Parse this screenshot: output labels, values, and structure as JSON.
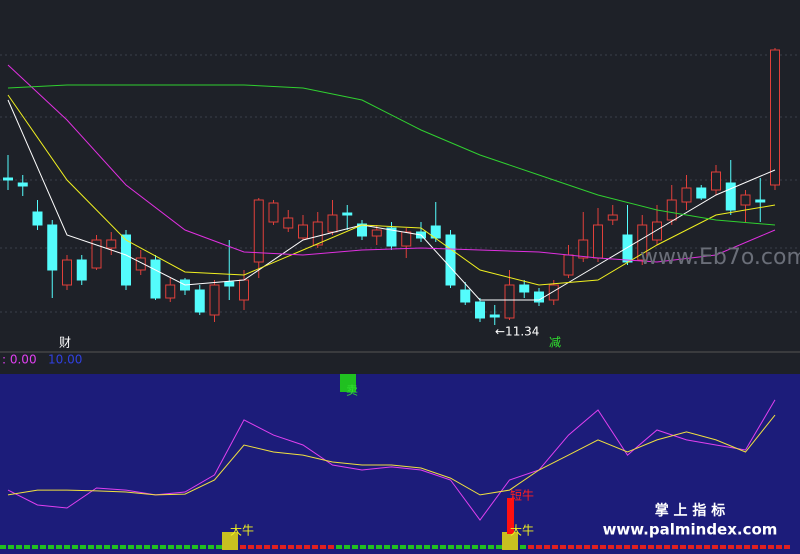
{
  "chart_data": [
    {
      "type": "candlestick",
      "ylim": [
        11.07,
        14.59
      ],
      "up_color": "#e0403a",
      "down_color": "#54fcfc",
      "open": [
        12.81,
        12.76,
        12.47,
        12.34,
        11.74,
        11.99,
        11.91,
        12.11,
        12.24,
        11.89,
        11.99,
        11.61,
        11.79,
        11.69,
        11.44,
        11.77,
        11.59,
        11.97,
        12.37,
        12.31,
        12.21,
        12.14,
        12.27,
        12.46,
        12.35,
        12.23,
        12.31,
        12.13,
        12.27,
        12.33,
        12.24,
        11.69,
        11.57,
        11.44,
        11.41,
        11.74,
        11.67,
        11.59,
        11.84,
        12.01,
        12.01,
        12.39,
        12.24,
        11.99,
        12.19,
        12.39,
        12.57,
        12.71,
        12.69,
        12.76,
        12.54,
        12.59,
        12.74
      ],
      "high": [
        13.04,
        12.84,
        12.59,
        12.39,
        12.04,
        12.04,
        12.24,
        12.27,
        12.29,
        12.09,
        12.04,
        11.81,
        11.81,
        11.74,
        11.79,
        12.19,
        11.89,
        12.61,
        12.59,
        12.49,
        12.44,
        12.47,
        12.59,
        12.54,
        12.39,
        12.34,
        12.37,
        12.31,
        12.37,
        12.57,
        12.29,
        11.77,
        11.61,
        11.54,
        11.89,
        11.79,
        11.71,
        11.79,
        12.14,
        12.47,
        12.51,
        12.54,
        12.54,
        12.44,
        12.54,
        12.74,
        12.84,
        12.74,
        12.94,
        12.99,
        12.69,
        12.81,
        14.11
      ],
      "low": [
        12.69,
        12.63,
        12.29,
        11.61,
        11.69,
        11.74,
        11.89,
        12.04,
        11.69,
        11.84,
        11.59,
        11.57,
        11.64,
        11.44,
        11.37,
        11.59,
        11.49,
        11.81,
        12.34,
        12.27,
        12.19,
        12.11,
        12.24,
        12.29,
        12.19,
        12.14,
        12.09,
        12.01,
        12.17,
        12.17,
        11.71,
        11.54,
        11.37,
        11.34,
        11.39,
        11.61,
        11.53,
        11.54,
        11.81,
        11.97,
        11.97,
        12.34,
        11.94,
        11.94,
        12.14,
        12.34,
        12.49,
        12.59,
        12.64,
        12.44,
        12.37,
        12.37,
        12.69
      ],
      "close": [
        12.79,
        12.73,
        12.34,
        11.89,
        11.99,
        11.79,
        12.19,
        12.19,
        11.74,
        12.01,
        11.61,
        11.74,
        11.69,
        11.47,
        11.74,
        11.73,
        11.79,
        12.59,
        12.56,
        12.41,
        12.34,
        12.37,
        12.44,
        12.44,
        12.23,
        12.29,
        12.13,
        12.27,
        12.21,
        12.21,
        11.74,
        11.57,
        11.41,
        11.42,
        11.74,
        11.67,
        11.57,
        11.74,
        12.04,
        12.19,
        12.34,
        12.44,
        11.97,
        12.34,
        12.37,
        12.59,
        12.71,
        12.61,
        12.87,
        12.49,
        12.64,
        12.57,
        14.09
      ],
      "series": [
        {
          "color": "#ffffff",
          "x": [
            0,
            4,
            8,
            12,
            16,
            20,
            24,
            28,
            32,
            36,
            40,
            44,
            48,
            52
          ],
          "values": [
            13.59,
            12.24,
            12.04,
            11.74,
            11.79,
            12.19,
            12.34,
            12.24,
            11.59,
            11.59,
            11.94,
            12.29,
            12.64,
            12.89
          ]
        },
        {
          "color": "#f0f020",
          "x": [
            0,
            4,
            8,
            12,
            16,
            20,
            24,
            28,
            32,
            36,
            40,
            44,
            48,
            52
          ],
          "values": [
            13.64,
            12.79,
            12.19,
            11.87,
            11.84,
            12.09,
            12.34,
            12.31,
            11.89,
            11.74,
            11.79,
            12.14,
            12.44,
            12.54
          ]
        },
        {
          "color": "#e030e0",
          "x": [
            0,
            4,
            8,
            12,
            16,
            20,
            24,
            28,
            32,
            36,
            40,
            44,
            48,
            52
          ],
          "values": [
            13.94,
            13.39,
            12.74,
            12.29,
            12.07,
            12.04,
            12.09,
            12.11,
            12.09,
            12.07,
            12.01,
            11.97,
            12.04,
            12.29
          ]
        },
        {
          "color": "#30d030",
          "x": [
            0,
            4,
            8,
            12,
            16,
            20,
            24,
            28,
            32,
            36,
            40,
            44,
            48,
            52
          ],
          "values": [
            13.71,
            13.74,
            13.74,
            13.74,
            13.74,
            13.71,
            13.59,
            13.29,
            13.04,
            12.84,
            12.64,
            12.49,
            12.39,
            12.34
          ]
        }
      ],
      "annotations": [
        "财",
        "减",
        "←11.34",
        "www.Eb7o.com"
      ]
    },
    {
      "type": "line",
      "ylim": [
        0,
        100
      ],
      "x": [
        0,
        2,
        4,
        6,
        8,
        10,
        12,
        14,
        16,
        18,
        20,
        22,
        24,
        26,
        28,
        30,
        32,
        34,
        36,
        38,
        40,
        42,
        44,
        46,
        48,
        50,
        52
      ],
      "series": [
        {
          "color": "#e040f0",
          "values": [
            33.3,
            24.7,
            23.0,
            34.5,
            33.3,
            30.5,
            32.2,
            42.0,
            73.6,
            64.9,
            59.2,
            47.7,
            44.8,
            46.6,
            44.8,
            39.1,
            16.1,
            39.1,
            44.8,
            64.9,
            79.3,
            53.4,
            67.8,
            62.1,
            59.2,
            56.3,
            85.1
          ]
        },
        {
          "color": "#f0e040",
          "values": [
            30.5,
            33.3,
            33.3,
            32.8,
            32.2,
            30.5,
            31.0,
            39.1,
            59.2,
            55.2,
            53.4,
            49.4,
            47.7,
            47.7,
            46.0,
            40.2,
            30.5,
            33.3,
            44.8,
            53.4,
            62.1,
            55.2,
            62.1,
            66.7,
            62.1,
            55.2,
            76.4
          ]
        }
      ],
      "annotations": [
        ": 0.00",
        "10.00",
        "卖",
        "大牛",
        "大牛",
        "短牛",
        "掌 上 指 标",
        "www.palmindex.com"
      ]
    }
  ]
}
